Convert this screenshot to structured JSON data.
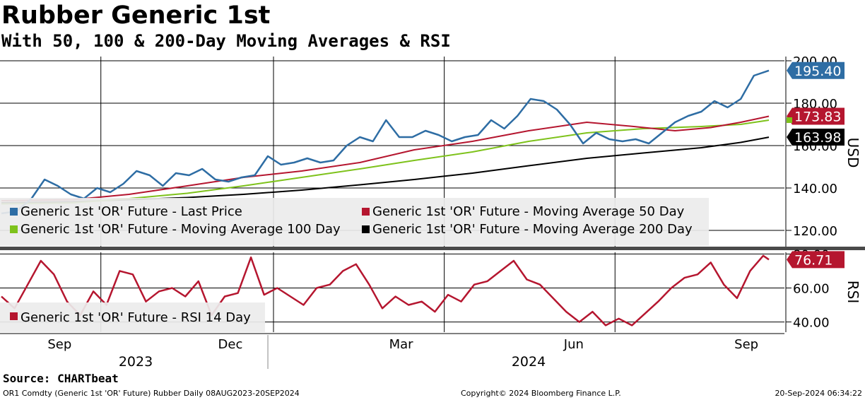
{
  "header": {
    "title": "Rubber Generic 1st",
    "subtitle": "With 50, 100 & 200-Day Moving Averages & RSI"
  },
  "footer": {
    "source": "Source: CHARTbeat",
    "left": "OR1 Comdty (Generic 1st 'OR' Future) Rubber  Daily 08AUG2023-20SEP2024",
    "center": "Copyright© 2024 Bloomberg Finance L.P.",
    "right": "20-Sep-2024 06:34:22"
  },
  "colors": {
    "last_price": "#2e6da4",
    "ma50": "#b5162f",
    "ma100": "#7ec21b",
    "ma200": "#000000",
    "rsi": "#b5162f",
    "legend_bg": "#ececec",
    "divider": "#4a4a4a"
  },
  "chart_data": [
    {
      "type": "line",
      "ylabel": "USD",
      "ylim": [
        112,
        202
      ],
      "y_ticks": [
        "120.00",
        "140.00",
        "160.00",
        "180.00",
        "200.00"
      ],
      "x_ticks": [
        "Sep",
        "Dec",
        "Mar",
        "Jun",
        "Sep"
      ],
      "x_years": [
        "2023",
        "2024"
      ],
      "x_range": [
        "2023-08-08",
        "2024-09-20"
      ],
      "grid": true,
      "legend_placement": "bottom-left",
      "series": [
        {
          "name": "Generic 1st 'OR' Future - Last Price",
          "last_label": "195.40",
          "points": [
            [
              "2023-08-08",
              128
            ],
            [
              "2023-08-16",
              129
            ],
            [
              "2023-08-24",
              135
            ],
            [
              "2023-08-31",
              144
            ],
            [
              "2023-09-07",
              141
            ],
            [
              "2023-09-14",
              137
            ],
            [
              "2023-09-21",
              135
            ],
            [
              "2023-09-28",
              140
            ],
            [
              "2023-10-05",
              138
            ],
            [
              "2023-10-12",
              142
            ],
            [
              "2023-10-19",
              148
            ],
            [
              "2023-10-26",
              146
            ],
            [
              "2023-11-02",
              141
            ],
            [
              "2023-11-09",
              147
            ],
            [
              "2023-11-16",
              146
            ],
            [
              "2023-11-23",
              149
            ],
            [
              "2023-11-30",
              144
            ],
            [
              "2023-12-07",
              143
            ],
            [
              "2023-12-14",
              145
            ],
            [
              "2023-12-21",
              146
            ],
            [
              "2023-12-28",
              155
            ],
            [
              "2024-01-04",
              151
            ],
            [
              "2024-01-11",
              152
            ],
            [
              "2024-01-18",
              154
            ],
            [
              "2024-01-25",
              152
            ],
            [
              "2024-02-01",
              153
            ],
            [
              "2024-02-08",
              160
            ],
            [
              "2024-02-15",
              164
            ],
            [
              "2024-02-22",
              162
            ],
            [
              "2024-02-29",
              172
            ],
            [
              "2024-03-07",
              164
            ],
            [
              "2024-03-14",
              164
            ],
            [
              "2024-03-21",
              167
            ],
            [
              "2024-03-28",
              165
            ],
            [
              "2024-04-04",
              162
            ],
            [
              "2024-04-11",
              164
            ],
            [
              "2024-04-18",
              165
            ],
            [
              "2024-04-25",
              172
            ],
            [
              "2024-05-02",
              168
            ],
            [
              "2024-05-09",
              174
            ],
            [
              "2024-05-16",
              182
            ],
            [
              "2024-05-23",
              181
            ],
            [
              "2024-05-30",
              177
            ],
            [
              "2024-06-06",
              170
            ],
            [
              "2024-06-13",
              161
            ],
            [
              "2024-06-20",
              166
            ],
            [
              "2024-06-27",
              163
            ],
            [
              "2024-07-04",
              162
            ],
            [
              "2024-07-11",
              163
            ],
            [
              "2024-07-18",
              161
            ],
            [
              "2024-07-25",
              166
            ],
            [
              "2024-08-01",
              171
            ],
            [
              "2024-08-08",
              174
            ],
            [
              "2024-08-15",
              176
            ],
            [
              "2024-08-22",
              181
            ],
            [
              "2024-08-29",
              178
            ],
            [
              "2024-09-05",
              182
            ],
            [
              "2024-09-12",
              193
            ],
            [
              "2024-09-20",
              195.4
            ]
          ]
        },
        {
          "name": "Generic 1st 'OR' Future - Moving Average 50 Day",
          "last_label": "173.83",
          "points": [
            [
              "2023-08-08",
              134
            ],
            [
              "2023-09-15",
              134.5
            ],
            [
              "2023-10-15",
              137
            ],
            [
              "2023-11-15",
              141
            ],
            [
              "2023-12-15",
              145
            ],
            [
              "2024-01-15",
              148
            ],
            [
              "2024-02-15",
              152
            ],
            [
              "2024-03-15",
              158
            ],
            [
              "2024-04-15",
              162
            ],
            [
              "2024-05-15",
              167
            ],
            [
              "2024-06-15",
              171
            ],
            [
              "2024-07-10",
              169
            ],
            [
              "2024-08-01",
              167
            ],
            [
              "2024-08-20",
              168.5
            ],
            [
              "2024-09-05",
              171
            ],
            [
              "2024-09-20",
              173.83
            ]
          ]
        },
        {
          "name": "Generic 1st 'OR' Future - Moving Average 100 Day",
          "last_label": "",
          "points": [
            [
              "2023-08-08",
              132.5
            ],
            [
              "2023-09-15",
              133
            ],
            [
              "2023-10-15",
              135
            ],
            [
              "2023-11-15",
              137.5
            ],
            [
              "2023-12-15",
              141
            ],
            [
              "2024-01-15",
              145
            ],
            [
              "2024-02-15",
              149
            ],
            [
              "2024-03-15",
              153
            ],
            [
              "2024-04-15",
              157
            ],
            [
              "2024-05-15",
              162
            ],
            [
              "2024-06-15",
              166
            ],
            [
              "2024-07-15",
              168
            ],
            [
              "2024-08-15",
              169
            ],
            [
              "2024-09-05",
              170
            ],
            [
              "2024-09-20",
              172
            ]
          ]
        },
        {
          "name": "Generic 1st 'OR' Future - Moving Average 200 Day",
          "last_label": "163.98",
          "points": [
            [
              "2023-08-08",
              133
            ],
            [
              "2023-09-15",
              133.5
            ],
            [
              "2023-10-15",
              134.5
            ],
            [
              "2023-11-15",
              135.5
            ],
            [
              "2023-12-15",
              137
            ],
            [
              "2024-01-15",
              139
            ],
            [
              "2024-02-15",
              141.5
            ],
            [
              "2024-03-15",
              144
            ],
            [
              "2024-04-15",
              147
            ],
            [
              "2024-05-15",
              150.5
            ],
            [
              "2024-06-15",
              154
            ],
            [
              "2024-07-15",
              156.5
            ],
            [
              "2024-08-15",
              159
            ],
            [
              "2024-09-05",
              161.5
            ],
            [
              "2024-09-20",
              163.98
            ]
          ]
        }
      ]
    },
    {
      "type": "line",
      "ylabel": "RSI",
      "ylim": [
        34,
        81
      ],
      "y_ticks": [
        "40.00",
        "60.00",
        "80.00"
      ],
      "grid": true,
      "legend_placement": "bottom-left",
      "series": [
        {
          "name": "Generic 1st 'OR' Future - RSI 14 Day",
          "last_label": "76.71",
          "points": [
            [
              "2023-08-08",
              55
            ],
            [
              "2023-08-15",
              48
            ],
            [
              "2023-08-22",
              62
            ],
            [
              "2023-08-29",
              76
            ],
            [
              "2023-09-05",
              68
            ],
            [
              "2023-09-12",
              52
            ],
            [
              "2023-09-19",
              44
            ],
            [
              "2023-09-26",
              58
            ],
            [
              "2023-10-03",
              50
            ],
            [
              "2023-10-10",
              70
            ],
            [
              "2023-10-17",
              68
            ],
            [
              "2023-10-24",
              52
            ],
            [
              "2023-10-31",
              58
            ],
            [
              "2023-11-07",
              60
            ],
            [
              "2023-11-14",
              55
            ],
            [
              "2023-11-21",
              64
            ],
            [
              "2023-11-28",
              44
            ],
            [
              "2023-12-05",
              55
            ],
            [
              "2023-12-12",
              57
            ],
            [
              "2023-12-19",
              78
            ],
            [
              "2023-12-26",
              56
            ],
            [
              "2024-01-02",
              60
            ],
            [
              "2024-01-09",
              55
            ],
            [
              "2024-01-16",
              50
            ],
            [
              "2024-01-23",
              60
            ],
            [
              "2024-01-30",
              62
            ],
            [
              "2024-02-06",
              70
            ],
            [
              "2024-02-13",
              74
            ],
            [
              "2024-02-20",
              62
            ],
            [
              "2024-02-27",
              48
            ],
            [
              "2024-03-05",
              55
            ],
            [
              "2024-03-12",
              50
            ],
            [
              "2024-03-19",
              52
            ],
            [
              "2024-03-26",
              46
            ],
            [
              "2024-04-02",
              56
            ],
            [
              "2024-04-09",
              52
            ],
            [
              "2024-04-16",
              62
            ],
            [
              "2024-04-23",
              64
            ],
            [
              "2024-04-30",
              70
            ],
            [
              "2024-05-07",
              76
            ],
            [
              "2024-05-14",
              65
            ],
            [
              "2024-05-21",
              62
            ],
            [
              "2024-05-28",
              54
            ],
            [
              "2024-06-04",
              46
            ],
            [
              "2024-06-11",
              40
            ],
            [
              "2024-06-18",
              46
            ],
            [
              "2024-06-25",
              38
            ],
            [
              "2024-07-02",
              42
            ],
            [
              "2024-07-09",
              38
            ],
            [
              "2024-07-16",
              45
            ],
            [
              "2024-07-23",
              52
            ],
            [
              "2024-07-30",
              60
            ],
            [
              "2024-08-06",
              66
            ],
            [
              "2024-08-13",
              68
            ],
            [
              "2024-08-20",
              75
            ],
            [
              "2024-08-27",
              62
            ],
            [
              "2024-09-03",
              54
            ],
            [
              "2024-09-10",
              70
            ],
            [
              "2024-09-17",
              79
            ],
            [
              "2024-09-20",
              76.71
            ]
          ]
        }
      ]
    }
  ]
}
